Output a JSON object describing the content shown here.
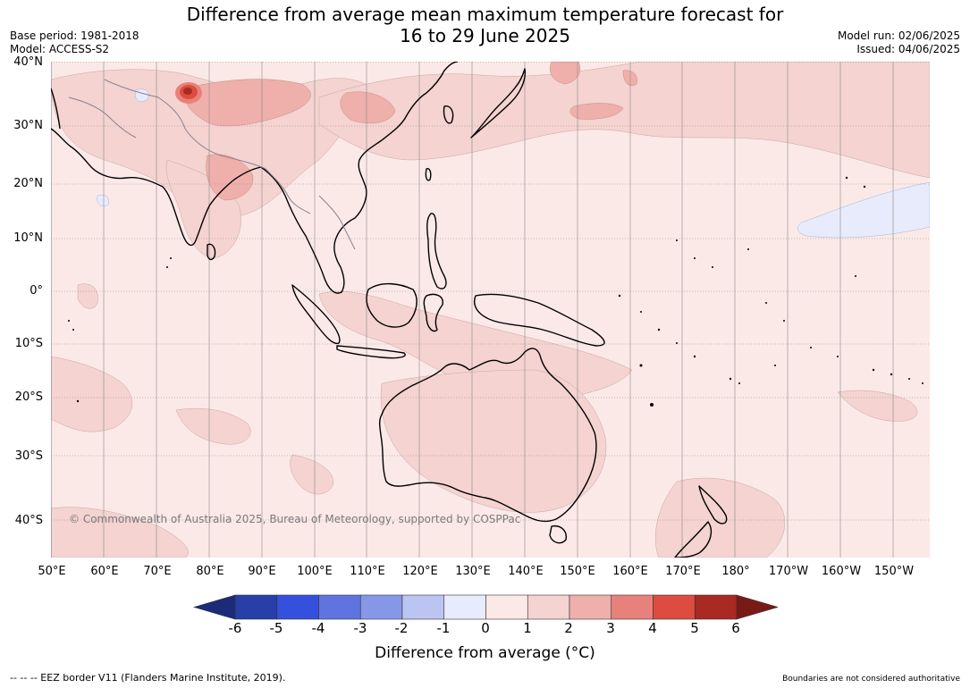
{
  "title": {
    "line1": "Difference from average mean maximum temperature forecast for",
    "line2": "16 to 29 June 2025"
  },
  "meta": {
    "base_period": "Base period: 1981-2018",
    "model": "Model: ACCESS-S2",
    "model_run": "Model run: 02/06/2025",
    "issued": "Issued: 04/06/2025"
  },
  "map": {
    "lat_labels": [
      "40°N",
      "30°N",
      "20°N",
      "10°N",
      "0°",
      "10°S",
      "20°S",
      "30°S",
      "40°S"
    ],
    "lon_labels": [
      "50°E",
      "60°E",
      "70°E",
      "80°E",
      "90°E",
      "100°E",
      "110°E",
      "120°E",
      "130°E",
      "140°E",
      "150°E",
      "160°E",
      "170°E",
      "180°",
      "170°W",
      "160°W",
      "150°W"
    ],
    "copyright": "© Commonwealth of Australia 2025, Bureau of Meteorology, supported by COSPPac",
    "background_color": "#fbe9e7"
  },
  "colorbar": {
    "label": "Difference from average (°C)",
    "ticks": [
      "-6",
      "-5",
      "-4",
      "-3",
      "-2",
      "-1",
      "0",
      "1",
      "2",
      "3",
      "4",
      "5",
      "6"
    ],
    "colors": [
      "#283ea8",
      "#3450dc",
      "#5f74e0",
      "#8797e8",
      "#bcc5f2",
      "#e7ebfb",
      "#fbe9e7",
      "#f4d3d0",
      "#efafab",
      "#e8817b",
      "#dd4c40",
      "#a82a22"
    ],
    "low_extend_color": "#1c2a7a",
    "high_extend_color": "#7a1a16"
  },
  "footer": {
    "eez": "--  --  -- EEZ border V11 (Flanders Marine Institute, 2019).",
    "disclaimer": "Boundaries are not considered authoritative"
  }
}
